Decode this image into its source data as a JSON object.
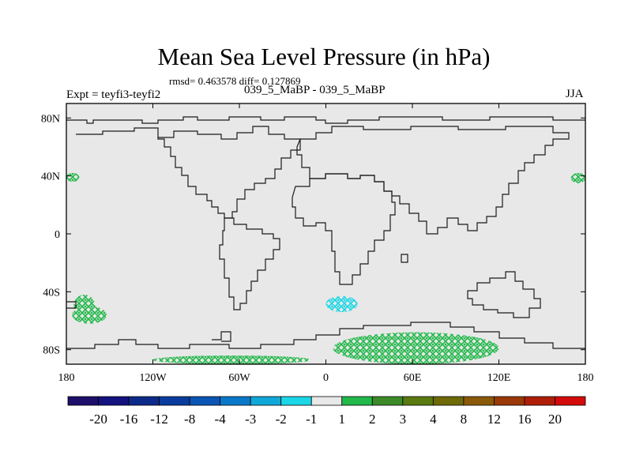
{
  "title": "Mean Sea Level Pressure (in hPa)",
  "stats_text": "rmsd= 0.463578 diff= 0.127869",
  "subtitle": "039_5_MaBP - 039_5_MaBP",
  "expt_label": "Expt = teyfi3-teyfi2",
  "season": "JJA",
  "chart_data": {
    "type": "heatmap",
    "title": "Mean Sea Level Pressure (in hPa)",
    "description_units": "hPa difference",
    "x_range": [
      -180,
      180
    ],
    "y_range": [
      -90,
      90
    ],
    "x_ticks": [
      {
        "value": -180,
        "label": "180"
      },
      {
        "value": -120,
        "label": "120W"
      },
      {
        "value": -60,
        "label": "60W"
      },
      {
        "value": 0,
        "label": "0"
      },
      {
        "value": 60,
        "label": "60E"
      },
      {
        "value": 120,
        "label": "120E"
      },
      {
        "value": 180,
        "label": "180"
      }
    ],
    "y_ticks": [
      {
        "value": 80,
        "label": "80N"
      },
      {
        "value": 40,
        "label": "40N"
      },
      {
        "value": 0,
        "label": "0"
      },
      {
        "value": -40,
        "label": "40S"
      },
      {
        "value": -80,
        "label": "80S"
      }
    ],
    "colorbar": {
      "colors": [
        "#1d0f6b",
        "#14127f",
        "#0c2a8a",
        "#0a3c9e",
        "#0a55b5",
        "#0a78c8",
        "#10a8d8",
        "#1ad6e6",
        "#e8e8e8",
        "#22b84a",
        "#3c8a28",
        "#5a7a12",
        "#6e6a08",
        "#8a5a08",
        "#9a3a08",
        "#b01e0a",
        "#d40a0a"
      ],
      "labels": [
        "-20",
        "-16",
        "-12",
        "-8",
        "-4",
        "-3",
        "-2",
        "-1",
        "1",
        "2",
        "3",
        "4",
        "8",
        "12",
        "16",
        "20"
      ]
    },
    "regions": [
      {
        "name": "south-pacific-west",
        "level": "2",
        "color": "#22b84a",
        "lon": [
          -175,
          -160
        ],
        "lat": [
          -58,
          -42
        ]
      },
      {
        "name": "south-pacific-high",
        "level": "2",
        "color": "#22b84a",
        "lon": [
          -176,
          -152
        ],
        "lat": [
          -62,
          -50
        ]
      },
      {
        "name": "north-pacific-west",
        "level": "2",
        "color": "#22b84a",
        "lon": [
          -180,
          -171
        ],
        "lat": [
          36,
          42
        ]
      },
      {
        "name": "north-pacific-east",
        "level": "2",
        "color": "#22b84a",
        "lon": [
          170,
          180
        ],
        "lat": [
          35,
          42
        ]
      },
      {
        "name": "antarctic-east",
        "level": "2",
        "color": "#22b84a",
        "lon": [
          5,
          120
        ],
        "lat": [
          -90,
          -68
        ]
      },
      {
        "name": "antarctic-west",
        "level": "2",
        "color": "#22b84a",
        "lon": [
          -120,
          -10
        ],
        "lat": [
          -90,
          -84
        ]
      },
      {
        "name": "south-atlantic-low",
        "level": "-2",
        "color": "#1ad6e6",
        "lon": [
          0,
          22
        ],
        "lat": [
          -54,
          -43
        ]
      }
    ]
  }
}
